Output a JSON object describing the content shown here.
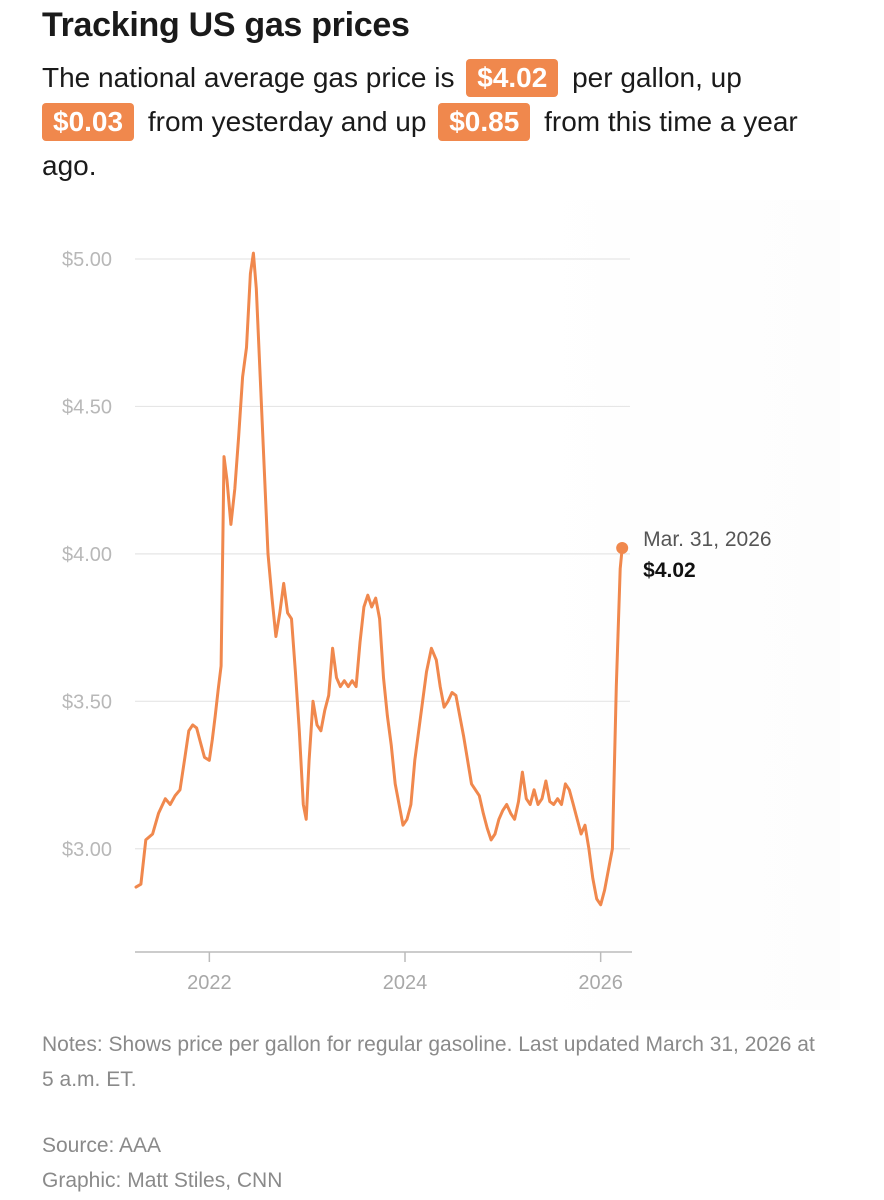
{
  "header": {
    "title": "Tracking US gas prices",
    "intro_1": "The national average gas price is",
    "price": "$4.02",
    "intro_2": "per gallon, up",
    "daily_change": "$0.03",
    "intro_3": "from yesterday and up",
    "yearly_change": "$0.85",
    "intro_4": "from this time a year ago."
  },
  "colors": {
    "accent": "#f0884d",
    "grid": "#e6e6e6",
    "axis": "#bbbbbb"
  },
  "chart_data": {
    "type": "line",
    "title": "",
    "xlabel": "",
    "ylabel": "",
    "x_tick_labels": [
      "2022",
      "2024",
      "2026"
    ],
    "y_tick_labels": [
      "$5.00",
      "$4.50",
      "$4.00",
      "$3.50",
      "$3.00"
    ],
    "y_ticks": [
      5.0,
      4.5,
      4.0,
      3.5,
      3.0
    ],
    "x_ticks": [
      2022,
      2024,
      2026
    ],
    "xlim": [
      2021.24,
      2026.3
    ],
    "ylim": [
      2.65,
      5.2
    ],
    "grid": true,
    "legend": "none",
    "series": [
      {
        "values": [
          [
            2021.25,
            2.87
          ],
          [
            2021.3,
            2.88
          ],
          [
            2021.35,
            3.03
          ],
          [
            2021.42,
            3.05
          ],
          [
            2021.48,
            3.12
          ],
          [
            2021.55,
            3.17
          ],
          [
            2021.6,
            3.15
          ],
          [
            2021.65,
            3.18
          ],
          [
            2021.7,
            3.2
          ],
          [
            2021.75,
            3.31
          ],
          [
            2021.79,
            3.4
          ],
          [
            2021.83,
            3.42
          ],
          [
            2021.87,
            3.41
          ],
          [
            2021.91,
            3.36
          ],
          [
            2021.95,
            3.31
          ],
          [
            2022.0,
            3.3
          ],
          [
            2022.03,
            3.37
          ],
          [
            2022.06,
            3.45
          ],
          [
            2022.09,
            3.54
          ],
          [
            2022.12,
            3.62
          ],
          [
            2022.15,
            4.33
          ],
          [
            2022.18,
            4.25
          ],
          [
            2022.22,
            4.1
          ],
          [
            2022.26,
            4.22
          ],
          [
            2022.3,
            4.4
          ],
          [
            2022.34,
            4.6
          ],
          [
            2022.38,
            4.7
          ],
          [
            2022.42,
            4.95
          ],
          [
            2022.45,
            5.02
          ],
          [
            2022.48,
            4.9
          ],
          [
            2022.52,
            4.6
          ],
          [
            2022.56,
            4.3
          ],
          [
            2022.6,
            4.0
          ],
          [
            2022.64,
            3.85
          ],
          [
            2022.68,
            3.72
          ],
          [
            2022.72,
            3.8
          ],
          [
            2022.76,
            3.9
          ],
          [
            2022.8,
            3.8
          ],
          [
            2022.84,
            3.78
          ],
          [
            2022.88,
            3.6
          ],
          [
            2022.92,
            3.4
          ],
          [
            2022.96,
            3.15
          ],
          [
            2022.99,
            3.1
          ],
          [
            2023.02,
            3.3
          ],
          [
            2023.06,
            3.5
          ],
          [
            2023.1,
            3.42
          ],
          [
            2023.14,
            3.4
          ],
          [
            2023.18,
            3.47
          ],
          [
            2023.22,
            3.52
          ],
          [
            2023.26,
            3.68
          ],
          [
            2023.3,
            3.58
          ],
          [
            2023.34,
            3.55
          ],
          [
            2023.38,
            3.57
          ],
          [
            2023.42,
            3.55
          ],
          [
            2023.46,
            3.57
          ],
          [
            2023.5,
            3.55
          ],
          [
            2023.54,
            3.7
          ],
          [
            2023.58,
            3.82
          ],
          [
            2023.62,
            3.86
          ],
          [
            2023.66,
            3.82
          ],
          [
            2023.7,
            3.85
          ],
          [
            2023.74,
            3.78
          ],
          [
            2023.78,
            3.58
          ],
          [
            2023.82,
            3.45
          ],
          [
            2023.86,
            3.35
          ],
          [
            2023.9,
            3.22
          ],
          [
            2023.94,
            3.15
          ],
          [
            2023.98,
            3.08
          ],
          [
            2024.02,
            3.1
          ],
          [
            2024.06,
            3.15
          ],
          [
            2024.1,
            3.3
          ],
          [
            2024.14,
            3.4
          ],
          [
            2024.18,
            3.5
          ],
          [
            2024.22,
            3.6
          ],
          [
            2024.27,
            3.68
          ],
          [
            2024.32,
            3.64
          ],
          [
            2024.36,
            3.55
          ],
          [
            2024.4,
            3.48
          ],
          [
            2024.44,
            3.5
          ],
          [
            2024.48,
            3.53
          ],
          [
            2024.52,
            3.52
          ],
          [
            2024.56,
            3.45
          ],
          [
            2024.6,
            3.38
          ],
          [
            2024.64,
            3.3
          ],
          [
            2024.68,
            3.22
          ],
          [
            2024.72,
            3.2
          ],
          [
            2024.76,
            3.18
          ],
          [
            2024.8,
            3.12
          ],
          [
            2024.84,
            3.07
          ],
          [
            2024.88,
            3.03
          ],
          [
            2024.92,
            3.05
          ],
          [
            2024.96,
            3.1
          ],
          [
            2025.0,
            3.13
          ],
          [
            2025.04,
            3.15
          ],
          [
            2025.08,
            3.12
          ],
          [
            2025.12,
            3.1
          ],
          [
            2025.16,
            3.16
          ],
          [
            2025.2,
            3.26
          ],
          [
            2025.24,
            3.17
          ],
          [
            2025.28,
            3.15
          ],
          [
            2025.32,
            3.2
          ],
          [
            2025.36,
            3.15
          ],
          [
            2025.4,
            3.17
          ],
          [
            2025.44,
            3.23
          ],
          [
            2025.48,
            3.16
          ],
          [
            2025.52,
            3.15
          ],
          [
            2025.56,
            3.17
          ],
          [
            2025.6,
            3.15
          ],
          [
            2025.64,
            3.22
          ],
          [
            2025.68,
            3.2
          ],
          [
            2025.72,
            3.15
          ],
          [
            2025.76,
            3.1
          ],
          [
            2025.8,
            3.05
          ],
          [
            2025.84,
            3.08
          ],
          [
            2025.88,
            3.0
          ],
          [
            2025.92,
            2.9
          ],
          [
            2025.96,
            2.83
          ],
          [
            2026.0,
            2.81
          ],
          [
            2026.04,
            2.86
          ],
          [
            2026.08,
            2.93
          ],
          [
            2026.12,
            3.0
          ],
          [
            2026.16,
            3.55
          ],
          [
            2026.2,
            3.95
          ],
          [
            2026.22,
            4.02
          ]
        ]
      }
    ],
    "annotation": {
      "label": "Mar. 31, 2026",
      "value_label": "$4.02",
      "x": 2026.22,
      "y": 4.02
    }
  },
  "footer": {
    "notes": "Notes: Shows price per gallon for regular gasoline. Last updated March 31, 2026 at 5 a.m. ET.",
    "source": "Source: AAA",
    "graphic": "Graphic: Matt Stiles, CNN"
  }
}
